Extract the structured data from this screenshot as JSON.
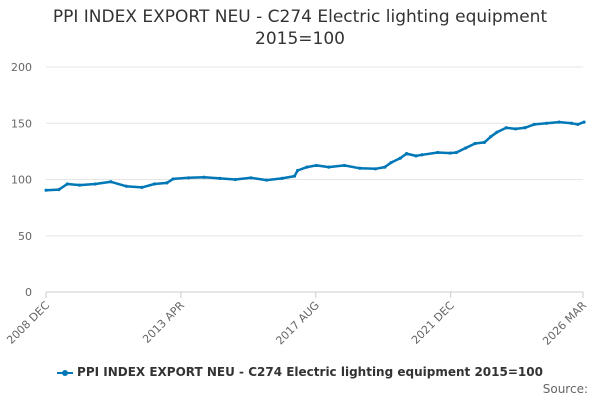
{
  "chart_data": {
    "type": "line",
    "title": "PPI INDEX EXPORT NEU - C274 Electric lighting equipment",
    "subtitle": "2015=100",
    "xlabel": "",
    "ylabel": "",
    "ylim": [
      0,
      200
    ],
    "yticks": [
      0,
      50,
      100,
      150,
      200
    ],
    "xlim": [
      "2008 DEC",
      "2026 MAR"
    ],
    "xticks": [
      "2008 DEC",
      "2013 APR",
      "2017 AUG",
      "2021 DEC",
      "2026 MAR"
    ],
    "grid": true,
    "legend": "bottom",
    "series": [
      {
        "name": "PPI INDEX EXPORT NEU - C274 Electric lighting equipment 2015=100",
        "color": "#0077b6",
        "x": [
          2008.92,
          2009.33,
          2009.6,
          2010.0,
          2010.5,
          2011.0,
          2011.5,
          2012.0,
          2012.4,
          2012.8,
          2013.0,
          2013.5,
          2014.0,
          2014.5,
          2015.0,
          2015.5,
          2016.0,
          2016.5,
          2016.9,
          2017.0,
          2017.3,
          2017.6,
          2018.0,
          2018.5,
          2019.0,
          2019.5,
          2019.8,
          2020.0,
          2020.3,
          2020.5,
          2020.8,
          2021.0,
          2021.5,
          2021.9,
          2022.1,
          2022.4,
          2022.7,
          2023.0,
          2023.2,
          2023.4,
          2023.7,
          2024.0,
          2024.3,
          2024.6,
          2025.0,
          2025.4,
          2025.8,
          2026.0,
          2026.2
        ],
        "y": [
          90.5,
          91,
          96,
          95,
          96,
          98,
          94,
          93,
          96,
          97,
          100.5,
          101.5,
          102,
          101,
          100,
          101.5,
          99.5,
          101,
          103,
          108,
          111,
          112.5,
          111,
          112.5,
          110,
          109.5,
          111,
          115,
          119,
          123,
          121,
          122,
          124,
          123.5,
          124,
          128,
          132,
          133,
          138,
          142,
          146,
          145,
          146,
          149,
          150,
          151,
          150,
          149,
          151
        ]
      }
    ]
  },
  "source_label": "Source:"
}
